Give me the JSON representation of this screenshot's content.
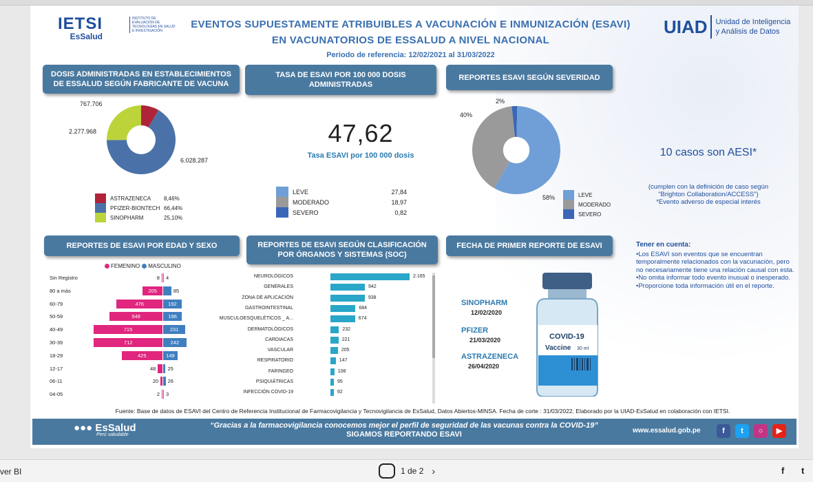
{
  "logo_ietsi": {
    "big": "IETSI",
    "sub": "EsSalud",
    "small": "Instituto de Evaluación de Tecnologías en Salud e Investigación"
  },
  "title": {
    "line1": "EVENTOS SUPUESTAMENTE ATRIBUIBLES A VACUNACIÓN E INMUNIZACIÓN (ESAVI)",
    "line2": "EN VACUNATORIOS DE ESSALUD A NIVEL NACIONAL",
    "period": "Periodo de referencia: 12/02/2021 al 31/03/2022"
  },
  "uiad": {
    "big": "UIAD",
    "line1": "Unidad de Inteligencia",
    "line2": "y Análisis de Datos"
  },
  "headers": {
    "dosis": "DOSIS ADMINISTRADAS EN ESTABLECIMIENTOS DE ESSALUD SEGÚN FABRICANTE DE  VACUNA",
    "tasa": "TASA DE ESAVI POR 100 000 DOSIS ADMINISTRADAS",
    "severidad": "REPORTES ESAVI SEGÚN SEVERIDAD",
    "edad": "REPORTES DE ESAVI POR EDAD Y SEXO",
    "soc": "REPORTES DE ESAVI SEGÚN CLASIFICACIÓN POR ÓRGANOS Y SISTEMAS (SOC)",
    "fecha": "FECHA DE PRIMER REPORTE DE ESAVI"
  },
  "dosis_labels": {
    "astra": "767.706",
    "sino": "2.277.968",
    "pfizer": "6.028.287"
  },
  "dosis_legend": [
    {
      "name": "ASTRAZENECA",
      "pct": "8,46%",
      "color": "#b0243a"
    },
    {
      "name": "PFIZER-BIONTECH",
      "pct": "66,44%",
      "color": "#4a72a8"
    },
    {
      "name": "SINOPHARM",
      "pct": "25,10%",
      "color": "#bcd33a"
    }
  ],
  "tasa": {
    "value": "47,62",
    "label": "Tasa ESAVI por 100 000 dosis",
    "rows": [
      {
        "name": "LEVE",
        "value": "27,84",
        "color": "#6f9fd6"
      },
      {
        "name": "MODERADO",
        "value": "18,97",
        "color": "#9a9a9a"
      },
      {
        "name": "SEVERO",
        "value": "0,82",
        "color": "#3a66b8"
      }
    ]
  },
  "severidad": {
    "labels": {
      "severo": "2%",
      "moderado": "40%",
      "leve": "58%"
    },
    "legend": [
      {
        "name": "LEVE",
        "color": "#6f9fd6"
      },
      {
        "name": "MODERADO",
        "color": "#9a9a9a"
      },
      {
        "name": "SEVERO",
        "color": "#3a66b8"
      }
    ]
  },
  "aesi": {
    "headline": "10 casos son AESI*",
    "note1": "(cumplen con la definición de caso según",
    "note2": "\"Brighton Collaboration/ACCESS\")",
    "note3": "*Evento adverso de especial interés"
  },
  "tener_cuenta": {
    "title": "Tener en cuenta:",
    "b1": "•Los ESAVI son eventos que se encuentran temporalmente relacionados con la vacunación, pero no necesariamente tiene una relación causal con esta.",
    "b2": "•No omita informar todo evento inusual o inesperado.",
    "b3": "•Proporcione toda información útil en el reporte."
  },
  "pyr_legend": {
    "fem": "FEMENINO",
    "masc": "MASCULINO"
  },
  "chart_data": [
    {
      "type": "pie",
      "title": "DOSIS ADMINISTRADAS EN ESTABLECIMIENTOS DE ESSALUD SEGÚN FABRICANTE DE  VACUNA",
      "categories": [
        "ASTRAZENECA",
        "PFIZER-BIONTECH",
        "SINOPHARM"
      ],
      "values": [
        767706,
        6028287,
        2277968
      ],
      "percent": [
        8.46,
        66.44,
        25.1
      ]
    },
    {
      "type": "pie",
      "title": "REPORTES ESAVI SEGÚN SEVERIDAD",
      "categories": [
        "LEVE",
        "MODERADO",
        "SEVERO"
      ],
      "values": [
        58,
        40,
        2
      ]
    },
    {
      "type": "bar",
      "title": "REPORTES DE ESAVI POR EDAD Y SEXO",
      "categories": [
        "Sin Registro",
        "80 a más",
        "60-79",
        "50-59",
        "40-49",
        "30-39",
        "18-29",
        "12-17",
        "06-11",
        "04-05"
      ],
      "series": [
        {
          "name": "FEMENINO",
          "values": [
            8,
            205,
            476,
            549,
            715,
            712,
            425,
            48,
            20,
            2
          ]
        },
        {
          "name": "MASCULINO",
          "values": [
            4,
            85,
            192,
            196,
            231,
            242,
            149,
            25,
            26,
            3
          ]
        }
      ]
    },
    {
      "type": "bar",
      "title": "REPORTES DE ESAVI SEGÚN CLASIFICACIÓN POR ÓRGANOS Y SISTEMAS (SOC)",
      "categories": [
        "NEUROLÓGICOS",
        "GENERALES",
        "ZONA DE APLICACIÓN",
        "GASTROINTESTINAL",
        "MUSCULOESQUELÉTICOS _ A...",
        "DERMATOLÓGICOS",
        "CARDIACAS",
        "VASCULAR",
        "RESPIRATORIO",
        "FARINGEO",
        "PSIQUIÁTRICAS",
        "INFECCIÓN COVID-19"
      ],
      "values": [
        2165,
        942,
        938,
        684,
        674,
        232,
        221,
        205,
        147,
        108,
        95,
        92
      ]
    }
  ],
  "vacunas_fecha": [
    {
      "name": "SINOPHARM",
      "date": "12/02/2020"
    },
    {
      "name": "PFIZER",
      "date": "21/03/2020"
    },
    {
      "name": "ASTRAZENECA",
      "date": "26/04/2020"
    }
  ],
  "vial": {
    "label": "COVID-19",
    "sub": "Vaccine",
    "ml": "30 ml"
  },
  "source": "Fuente: Base de datos de ESAVI del Centro de Referencia Institucional de Farmacovigilancia y Tecnovigilancia de EsSalud, Datos Abiertos-MINSA. Fecha de corte : 31/03/2022. Elaborado por la UIAD-EsSalud en colaboración con IETSI.",
  "footer": {
    "brand": "EsSalud",
    "brand_sub": "Perú saludable",
    "line1": "“Gracias a la farmacovigilancia conocemos mejor el perfil de seguridad de las vacunas contra la COVID-19”",
    "line2": "SIGAMOS REPORTANDO ESAVI",
    "url": "www.essalud.gob.pe"
  },
  "statusbar": {
    "app": "ver BI",
    "page": "1 de 2",
    "next": "›"
  }
}
